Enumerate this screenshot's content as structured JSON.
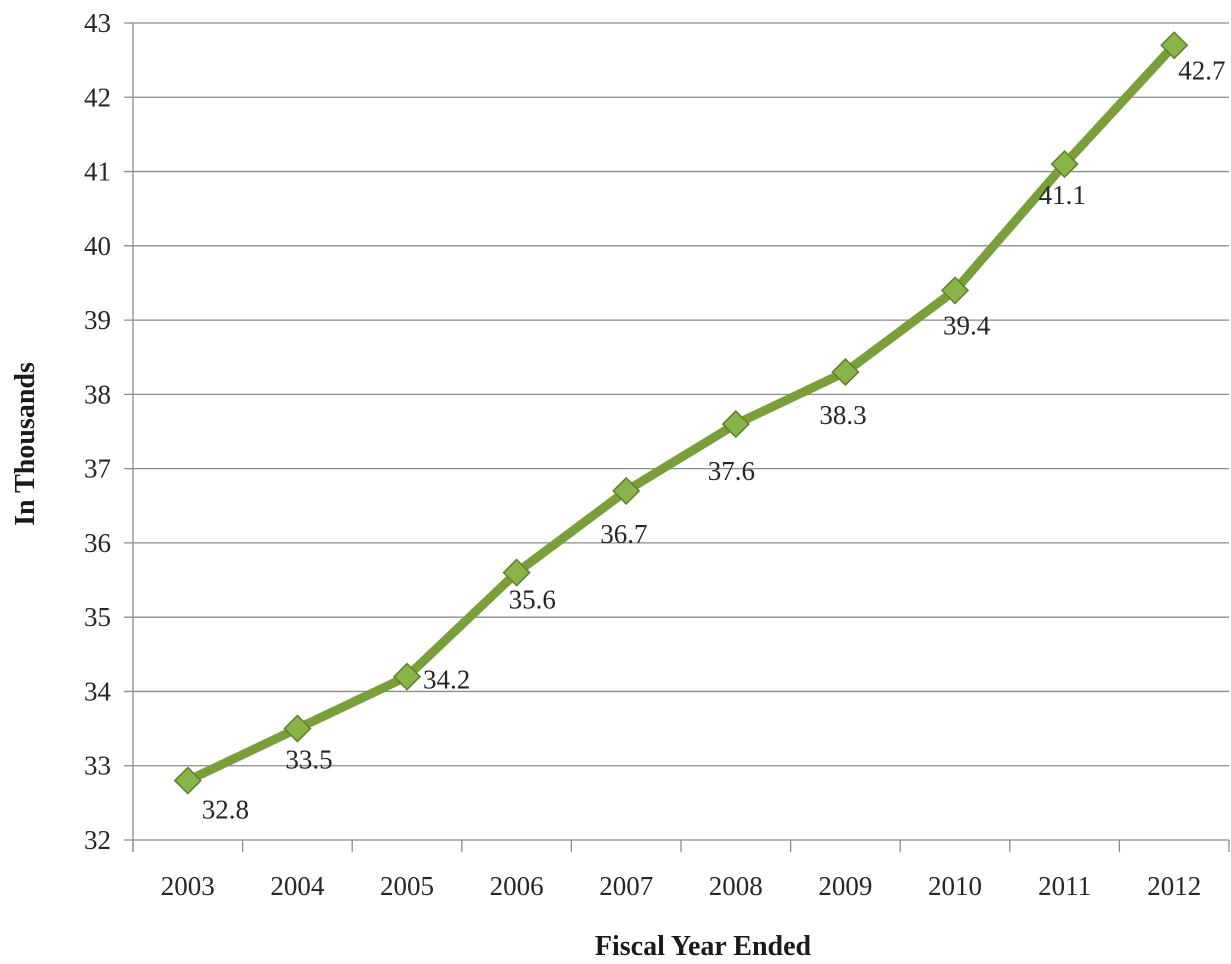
{
  "chart_data": {
    "type": "line",
    "title": "",
    "xlabel": "Fiscal Year Ended",
    "ylabel": "In Thousands",
    "categories": [
      "2003",
      "2004",
      "2005",
      "2006",
      "2007",
      "2008",
      "2009",
      "2010",
      "2011",
      "2012"
    ],
    "series": [
      {
        "values": [
          32.8,
          33.5,
          34.2,
          35.6,
          36.7,
          37.6,
          38.3,
          39.4,
          41.1,
          42.7
        ],
        "data_labels": [
          "32.8",
          "33.5",
          "34.2",
          "35.6",
          "36.7",
          "37.6",
          "38.3",
          "39.4",
          "41.1",
          "42.7"
        ],
        "marker": "diamond"
      }
    ],
    "ylim": [
      32,
      43
    ],
    "yticks": [
      "32",
      "33",
      "34",
      "35",
      "36",
      "37",
      "38",
      "39",
      "40",
      "41",
      "42",
      "43"
    ],
    "grid": true,
    "legend": "none",
    "colors": {
      "line": "#7a9e3a",
      "marker_fill": "#8ab34a",
      "marker_edge": "#5f7f2a",
      "grid": "#8c8c8c",
      "axis": "#8c8c8c"
    }
  }
}
